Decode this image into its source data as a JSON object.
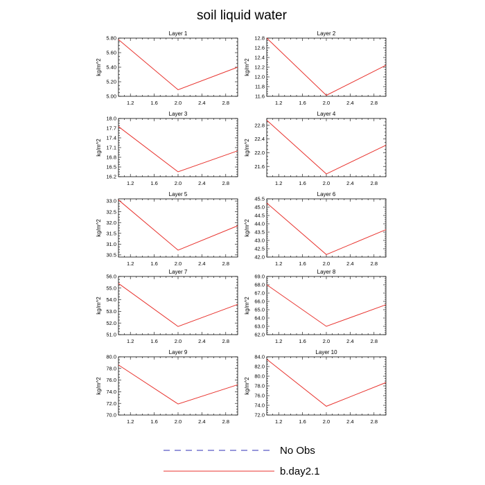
{
  "figure": {
    "title": "soil liquid water"
  },
  "legend": {
    "items": [
      {
        "label": "No Obs",
        "color": "#2d2db4",
        "dash": "dashed"
      },
      {
        "label": "b.day2.1",
        "color": "#e8322d",
        "dash": "solid"
      }
    ]
  },
  "chart_data": [
    {
      "type": "line",
      "title": "Layer 1",
      "ylabel": "kg/m^2",
      "xlim": [
        1.0,
        3.0
      ],
      "ylim": [
        5.0,
        5.8
      ],
      "xticks": [
        1.2,
        1.6,
        2.0,
        2.4,
        2.8
      ],
      "xtick_labels": [
        "1.2",
        "1.6",
        "2.0",
        "2.4",
        "2.8"
      ],
      "yticks": [
        5.0,
        5.2,
        5.4,
        5.6,
        5.8
      ],
      "ytick_labels": [
        "5.00",
        "5.20",
        "5.40",
        "5.60",
        "5.80"
      ],
      "series": [
        {
          "name": "b.day2.1",
          "color": "#e8322d",
          "x": [
            1,
            2,
            3
          ],
          "y": [
            5.78,
            5.09,
            5.4
          ]
        }
      ]
    },
    {
      "type": "line",
      "title": "Layer 2",
      "ylabel": "kg/m^2",
      "xlim": [
        1.0,
        3.0
      ],
      "ylim": [
        11.6,
        12.8
      ],
      "xticks": [
        1.2,
        1.6,
        2.0,
        2.4,
        2.8
      ],
      "xtick_labels": [
        "1.2",
        "1.6",
        "2.0",
        "2.4",
        "2.8"
      ],
      "yticks": [
        11.6,
        11.8,
        12.0,
        12.2,
        12.4,
        12.6,
        12.8
      ],
      "ytick_labels": [
        "11.6",
        "11.8",
        "12.0",
        "12.2",
        "12.4",
        "12.6",
        "12.8"
      ],
      "series": [
        {
          "name": "b.day2.1",
          "color": "#e8322d",
          "x": [
            1,
            2,
            3
          ],
          "y": [
            12.8,
            11.62,
            12.24
          ]
        }
      ]
    },
    {
      "type": "line",
      "title": "Layer 3",
      "ylabel": "kg/m^2",
      "xlim": [
        1.0,
        3.0
      ],
      "ylim": [
        16.2,
        18.0
      ],
      "xticks": [
        1.2,
        1.6,
        2.0,
        2.4,
        2.8
      ],
      "xtick_labels": [
        "1.2",
        "1.6",
        "2.0",
        "2.4",
        "2.8"
      ],
      "yticks": [
        16.2,
        16.5,
        16.8,
        17.1,
        17.4,
        17.7,
        18.0
      ],
      "ytick_labels": [
        "16.2",
        "16.5",
        "16.8",
        "17.1",
        "17.4",
        "17.7",
        "18.0"
      ],
      "series": [
        {
          "name": "b.day2.1",
          "color": "#e8322d",
          "x": [
            1,
            2,
            3
          ],
          "y": [
            17.75,
            16.35,
            17.0
          ]
        }
      ]
    },
    {
      "type": "line",
      "title": "Layer 4",
      "ylabel": "kg/m^2",
      "xlim": [
        1.0,
        3.0
      ],
      "ylim": [
        21.3,
        23.0
      ],
      "xticks": [
        1.2,
        1.6,
        2.0,
        2.4,
        2.8
      ],
      "xtick_labels": [
        "1.2",
        "1.6",
        "2.0",
        "2.4",
        "2.8"
      ],
      "yticks": [
        21.6,
        22.0,
        22.4,
        22.8
      ],
      "ytick_labels": [
        "21.6",
        "22.0",
        "22.4",
        "22.8"
      ],
      "series": [
        {
          "name": "b.day2.1",
          "color": "#e8322d",
          "x": [
            1,
            2,
            3
          ],
          "y": [
            22.95,
            21.38,
            22.22
          ]
        }
      ]
    },
    {
      "type": "line",
      "title": "Layer 5",
      "ylabel": "kg/m^2",
      "xlim": [
        1.0,
        3.0
      ],
      "ylim": [
        30.4,
        33.1
      ],
      "xticks": [
        1.2,
        1.6,
        2.0,
        2.4,
        2.8
      ],
      "xtick_labels": [
        "1.2",
        "1.6",
        "2.0",
        "2.4",
        "2.8"
      ],
      "yticks": [
        30.5,
        31.0,
        31.5,
        32.0,
        32.5,
        33.0
      ],
      "ytick_labels": [
        "30.5",
        "31.0",
        "31.5",
        "32.0",
        "32.5",
        "33.0"
      ],
      "series": [
        {
          "name": "b.day2.1",
          "color": "#e8322d",
          "x": [
            1,
            2,
            3
          ],
          "y": [
            33.05,
            30.72,
            31.85
          ]
        }
      ]
    },
    {
      "type": "line",
      "title": "Layer 6",
      "ylabel": "kg/m^2",
      "xlim": [
        1.0,
        3.0
      ],
      "ylim": [
        42.0,
        45.5
      ],
      "xticks": [
        1.2,
        1.6,
        2.0,
        2.4,
        2.8
      ],
      "xtick_labels": [
        "1.2",
        "1.6",
        "2.0",
        "2.4",
        "2.8"
      ],
      "yticks": [
        42.0,
        42.5,
        43.0,
        43.5,
        44.0,
        44.5,
        45.0,
        45.5
      ],
      "ytick_labels": [
        "42.0",
        "42.5",
        "43.0",
        "43.5",
        "44.0",
        "44.5",
        "45.0",
        "45.5"
      ],
      "series": [
        {
          "name": "b.day2.1",
          "color": "#e8322d",
          "x": [
            1,
            2,
            3
          ],
          "y": [
            45.25,
            42.15,
            43.65
          ]
        }
      ]
    },
    {
      "type": "line",
      "title": "Layer 7",
      "ylabel": "kg/m^2",
      "xlim": [
        1.0,
        3.0
      ],
      "ylim": [
        51.0,
        56.0
      ],
      "xticks": [
        1.2,
        1.6,
        2.0,
        2.4,
        2.8
      ],
      "xtick_labels": [
        "1.2",
        "1.6",
        "2.0",
        "2.4",
        "2.8"
      ],
      "yticks": [
        51.0,
        52.0,
        53.0,
        54.0,
        55.0,
        56.0
      ],
      "ytick_labels": [
        "51.0",
        "52.0",
        "53.0",
        "54.0",
        "55.0",
        "56.0"
      ],
      "series": [
        {
          "name": "b.day2.1",
          "color": "#e8322d",
          "x": [
            1,
            2,
            3
          ],
          "y": [
            55.4,
            51.7,
            53.6
          ]
        }
      ]
    },
    {
      "type": "line",
      "title": "Layer 8",
      "ylabel": "kg/m^2",
      "xlim": [
        1.0,
        3.0
      ],
      "ylim": [
        62.0,
        69.0
      ],
      "xticks": [
        1.2,
        1.6,
        2.0,
        2.4,
        2.8
      ],
      "xtick_labels": [
        "1.2",
        "1.6",
        "2.0",
        "2.4",
        "2.8"
      ],
      "yticks": [
        62.0,
        63.0,
        64.0,
        65.0,
        66.0,
        67.0,
        68.0,
        69.0
      ],
      "ytick_labels": [
        "62.0",
        "63.0",
        "64.0",
        "65.0",
        "66.0",
        "67.0",
        "68.0",
        "69.0"
      ],
      "series": [
        {
          "name": "b.day2.1",
          "color": "#e8322d",
          "x": [
            1,
            2,
            3
          ],
          "y": [
            68.0,
            63.0,
            65.6
          ]
        }
      ]
    },
    {
      "type": "line",
      "title": "Layer 9",
      "ylabel": "kg/m^2",
      "xlim": [
        1.0,
        3.0
      ],
      "ylim": [
        70.0,
        80.0
      ],
      "xticks": [
        1.2,
        1.6,
        2.0,
        2.4,
        2.8
      ],
      "xtick_labels": [
        "1.2",
        "1.6",
        "2.0",
        "2.4",
        "2.8"
      ],
      "yticks": [
        70.0,
        72.0,
        74.0,
        76.0,
        78.0,
        80.0
      ],
      "ytick_labels": [
        "70.0",
        "72.0",
        "74.0",
        "76.0",
        "78.0",
        "80.0"
      ],
      "series": [
        {
          "name": "b.day2.1",
          "color": "#e8322d",
          "x": [
            1,
            2,
            3
          ],
          "y": [
            78.6,
            71.9,
            75.2
          ]
        }
      ]
    },
    {
      "type": "line",
      "title": "Layer 10",
      "ylabel": "kg/m^2",
      "xlim": [
        1.0,
        3.0
      ],
      "ylim": [
        72.0,
        84.0
      ],
      "xticks": [
        1.2,
        1.6,
        2.0,
        2.4,
        2.8
      ],
      "xtick_labels": [
        "1.2",
        "1.6",
        "2.0",
        "2.4",
        "2.8"
      ],
      "yticks": [
        72.0,
        74.0,
        76.0,
        78.0,
        80.0,
        82.0,
        84.0
      ],
      "ytick_labels": [
        "72.0",
        "74.0",
        "76.0",
        "78.0",
        "80.0",
        "82.0",
        "84.0"
      ],
      "series": [
        {
          "name": "b.day2.1",
          "color": "#e8322d",
          "x": [
            1,
            2,
            3
          ],
          "y": [
            83.5,
            73.8,
            78.7
          ]
        }
      ]
    }
  ]
}
